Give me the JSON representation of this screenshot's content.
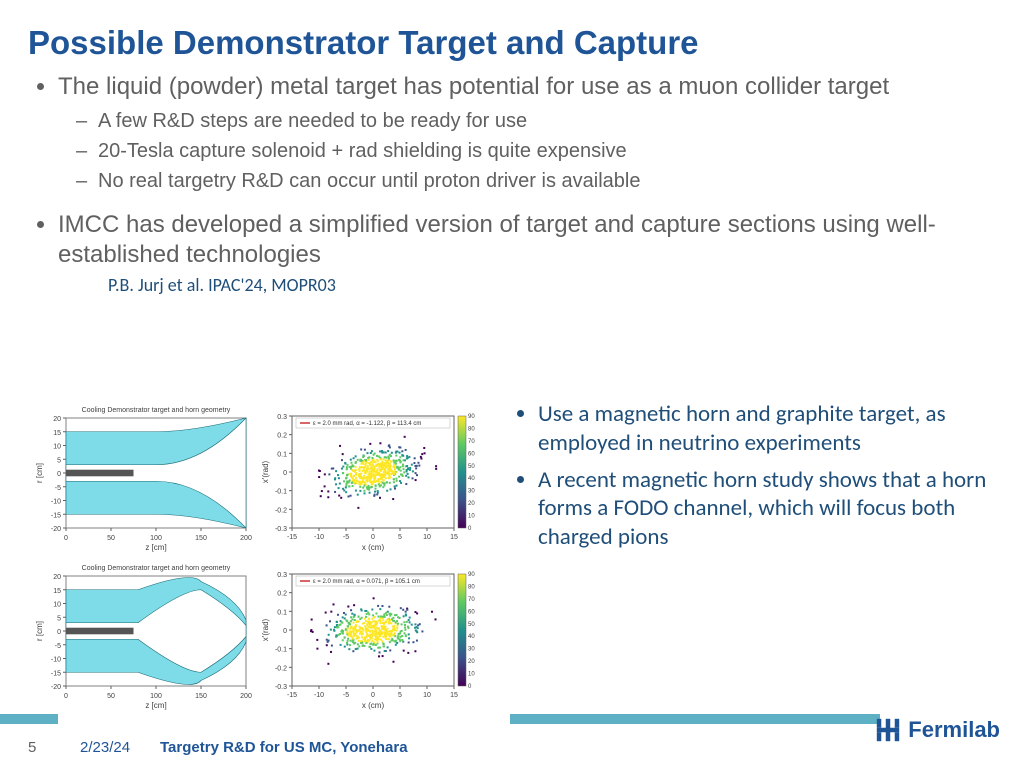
{
  "title": "Possible Demonstrator Target and Capture",
  "bullets": [
    {
      "text": "The liquid (powder) metal target has potential for use as a muon collider target",
      "sub": [
        "A few R&D steps are needed to be ready for use",
        "20-Tesla capture solenoid + rad shielding is quite expensive",
        "No real targetry R&D can occur until proton driver is available"
      ]
    },
    {
      "text": "IMCC has developed a simplified version of target and capture sections using well-established technologies",
      "sub": []
    }
  ],
  "citation": "P.B. Jurj et al. IPAC'24, MOPR03",
  "right_bullets": [
    "Use a magnetic horn and graphite target, as employed in neutrino experiments",
    "A recent magnetic horn study shows that a horn forms a FODO channel, which will focus both charged pions"
  ],
  "geom_plots": {
    "title": "Cooling Demonstrator target and horn geometry",
    "title_fontsize": 7,
    "xlabel": "z [cm]",
    "ylabel": "r [cm]",
    "xlim": [
      0,
      200
    ],
    "ylim": [
      -20,
      20
    ],
    "xticks": [
      0,
      50,
      100,
      150,
      200
    ],
    "yticks": [
      -20,
      -15,
      -10,
      -5,
      0,
      5,
      10,
      15,
      20
    ],
    "tick_fontsize": 7,
    "bg_color": "#ffffff",
    "horn_fill": "#7edce8",
    "target_color": "#555555",
    "border_color": "#808080",
    "plots": [
      {
        "throat_z": 100,
        "throat_r": 3,
        "end_r": 20,
        "shape": "flare"
      },
      {
        "throat_z": 100,
        "throat_r": 3,
        "end_r": 18,
        "shape": "bulge"
      }
    ]
  },
  "scatter_plots": {
    "xlabel": "x (cm)",
    "ylabel": "x'(rad)",
    "xlim": [
      -15,
      15
    ],
    "ylim": [
      -0.3,
      0.3
    ],
    "xticks": [
      -15,
      -10,
      -5,
      0,
      5,
      10,
      15
    ],
    "yticks": [
      -0.3,
      -0.2,
      -0.1,
      0,
      0.1,
      0.2,
      0.3
    ],
    "tick_fontsize": 7,
    "bg_color": "#ffffff",
    "scatter_bg": "#2d0a4f",
    "colormap": [
      "#440154",
      "#3b528b",
      "#21918c",
      "#5ec962",
      "#fde725"
    ],
    "cbar_range": [
      0,
      90
    ],
    "cbar_ticks": [
      0,
      10,
      20,
      30,
      40,
      50,
      60,
      70,
      80,
      90
    ],
    "legends": [
      "ε = 2.0 mm rad, α = -1.122, β = 113.4 cm",
      "ε = 2.0 mm rad, α = 0.071, β = 105.1 cm"
    ],
    "legend_color": "#cc3333",
    "legend_fontsize": 6
  },
  "footer": {
    "page": "5",
    "date": "2/23/24",
    "title": "Targetry R&D for US MC, Yonehara",
    "logo_text": "Fermilab",
    "stripe_color": "#5eb0c4"
  },
  "colors": {
    "title": "#1f5597",
    "body": "#606060",
    "accent": "#1f4e79"
  }
}
